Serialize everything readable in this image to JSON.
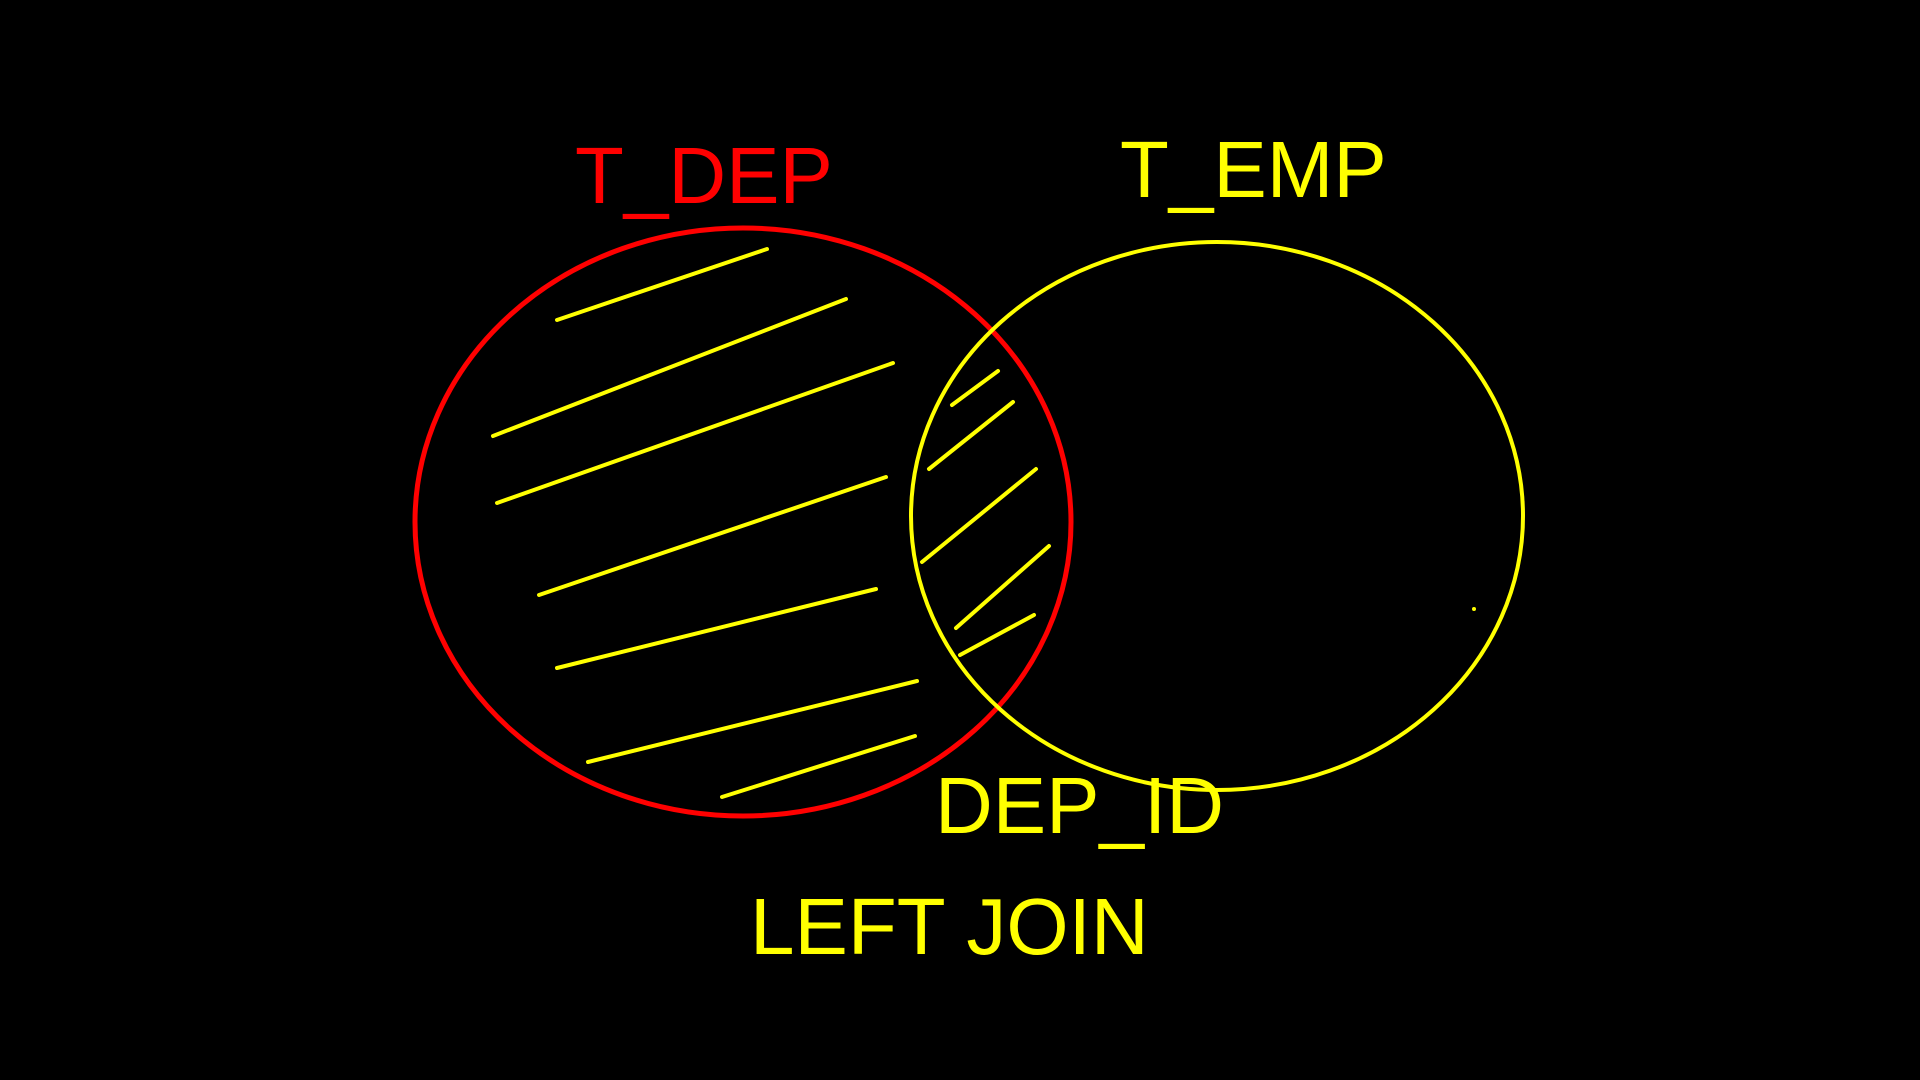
{
  "diagram": {
    "left_set": {
      "label": "T_DEP",
      "color": "#FF0000"
    },
    "right_set": {
      "label": "T_EMP",
      "color": "#FFFF00"
    },
    "join_key_label": "DEP_ID",
    "join_type_label": "LEFT JOIN",
    "hatch_color": "#FFFF00",
    "background_color": "#000000"
  }
}
